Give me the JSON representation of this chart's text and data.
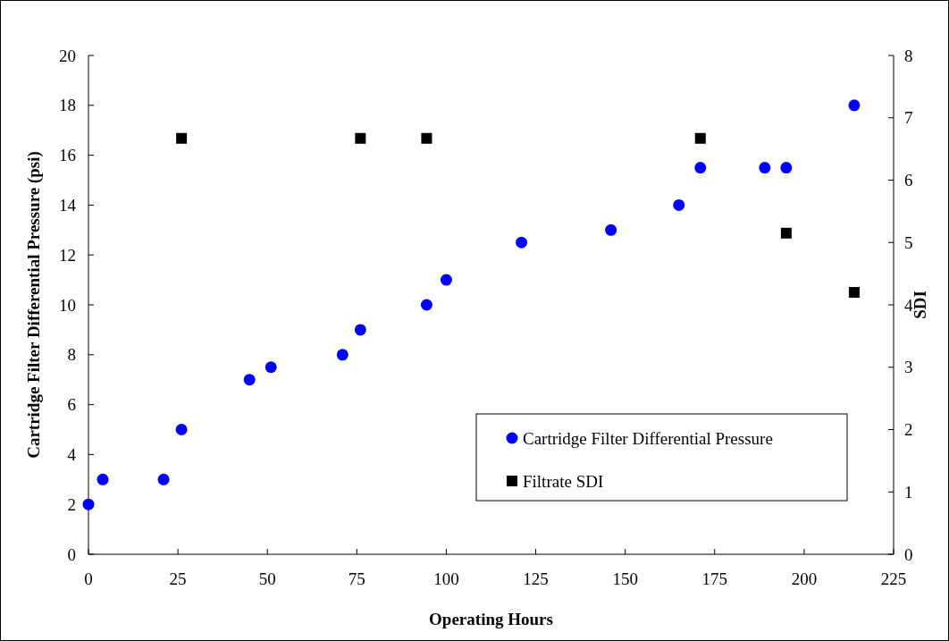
{
  "chart_data": {
    "type": "scatter",
    "xlabel": "Operating Hours",
    "ylabel": "Cartridge Filter Differential Pressure (psi)",
    "y2label": "SDI",
    "xlim": [
      0,
      225
    ],
    "xticks": [
      0,
      25,
      50,
      75,
      100,
      125,
      150,
      175,
      200,
      225
    ],
    "ylim": [
      0,
      20
    ],
    "yticks": [
      0,
      2,
      4,
      6,
      8,
      10,
      12,
      14,
      16,
      18,
      20
    ],
    "y2lim": [
      0,
      8
    ],
    "y2ticks": [
      0,
      1,
      2,
      3,
      4,
      5,
      6,
      7,
      8
    ],
    "legend": "bottom right",
    "grid": false,
    "series": [
      {
        "name": "Cartridge Filter Differential Pressure",
        "color": "#0000ff",
        "marker": "circle",
        "x": [
          0,
          4,
          21,
          26,
          45,
          51,
          71,
          76,
          94.5,
          100,
          121,
          146,
          165,
          171,
          189,
          195,
          214
        ],
        "values": [
          2,
          3,
          3,
          5,
          7,
          7.5,
          8,
          9,
          10,
          11,
          12.5,
          13,
          14,
          15.5,
          15.5,
          15.5,
          18
        ]
      },
      {
        "name": "Filtrate SDI",
        "color": "#000000",
        "marker": "square",
        "axis": "y2",
        "x": [
          26,
          76,
          94.5,
          171,
          195,
          214
        ],
        "values": [
          6.67,
          6.67,
          6.67,
          6.67,
          5.15,
          4.2
        ]
      }
    ]
  }
}
